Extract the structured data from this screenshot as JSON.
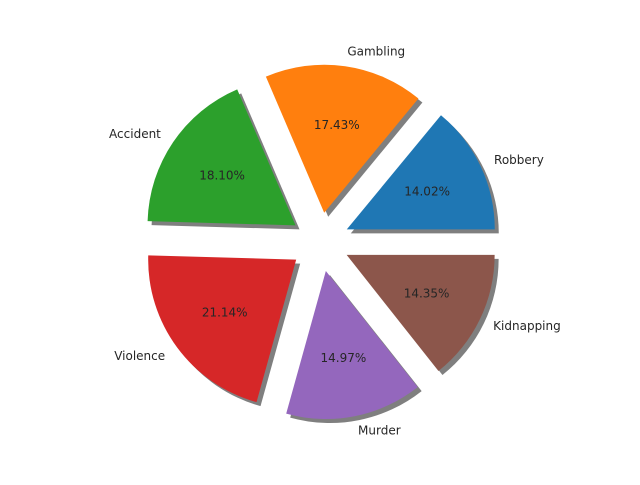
{
  "chart_data": {
    "type": "pie",
    "title": "",
    "labels": [
      "Robbery",
      "Gambling",
      "Accident",
      "Violence",
      "Murder",
      "Kidnapping"
    ],
    "values": [
      14.02,
      17.43,
      18.1,
      21.14,
      14.97,
      14.35
    ],
    "value_labels": [
      "14.02%",
      "17.43%",
      "18.10%",
      "21.14%",
      "14.97%",
      "14.35%"
    ],
    "colors": [
      "#1f77b4",
      "#ff7f0e",
      "#2ca02c",
      "#d62728",
      "#9467bd",
      "#8c564b"
    ],
    "start_angle_deg": 0,
    "direction": "counterclockwise",
    "exploded": true,
    "shadow": true,
    "legend": "none"
  }
}
